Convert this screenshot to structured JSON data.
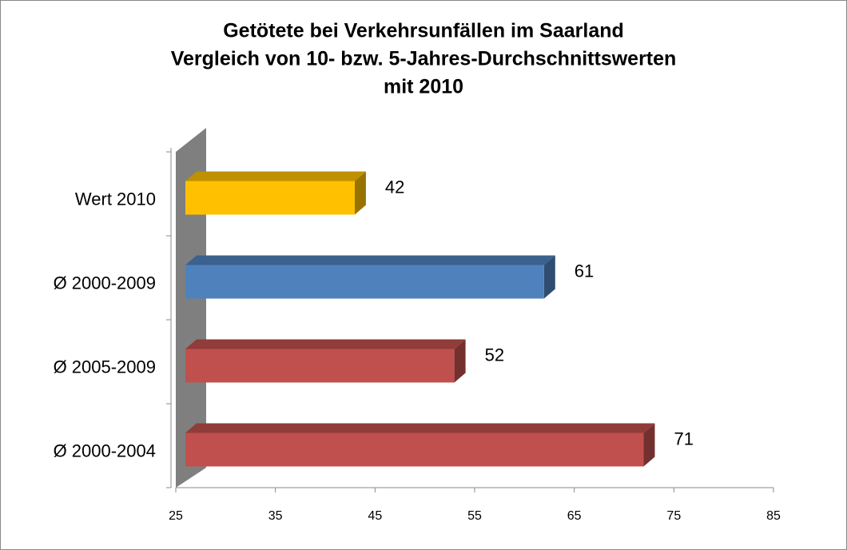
{
  "chart_data": {
    "type": "bar3d_horizontal",
    "title": [
      "Getötete bei Verkehrsunfällen im Saarland",
      "Vergleich von 10- bzw. 5-Jahres-Durchschnittswerten",
      "mit 2010"
    ],
    "categories": [
      "Wert 2010",
      "Ø 2000-2009",
      "Ø 2005-2009",
      "Ø 2000-2004"
    ],
    "values": [
      42,
      61,
      52,
      71
    ],
    "colors": [
      "#ffc000",
      "#4f81bd",
      "#c0504d",
      "#c0504d"
    ],
    "xlim": [
      25,
      85
    ],
    "xticks": [
      25,
      35,
      45,
      55,
      65,
      75,
      85
    ]
  }
}
